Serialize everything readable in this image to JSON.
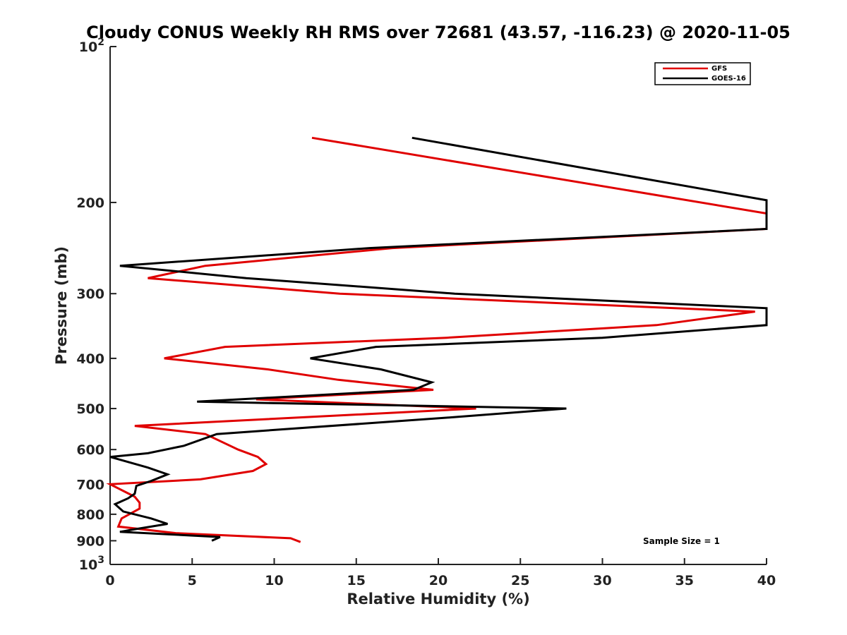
{
  "chart_data": {
    "type": "line",
    "title": "Cloudy CONUS Weekly RH RMS over 72681 (43.57, -116.23) @ 2020-11-05",
    "xlabel": "Relative Humidity (%)",
    "ylabel": "Pressure (mb)",
    "xlim": [
      0,
      40
    ],
    "ylim": [
      100,
      1000
    ],
    "y_scale": "log",
    "y_reversed": true,
    "grid": false,
    "legend_position": "top-right",
    "x_ticks": [
      "0",
      "5",
      "10",
      "15",
      "20",
      "25",
      "30",
      "35",
      "40"
    ],
    "y_ticks": [
      {
        "value": 100,
        "base": "10",
        "exp": "2"
      },
      {
        "value": 200,
        "label": "200"
      },
      {
        "value": 300,
        "label": "300"
      },
      {
        "value": 400,
        "label": "400"
      },
      {
        "value": 500,
        "label": "500"
      },
      {
        "value": 600,
        "label": "600"
      },
      {
        "value": 700,
        "label": "700"
      },
      {
        "value": 800,
        "label": "800"
      },
      {
        "value": 900,
        "label": "900"
      },
      {
        "value": 1000,
        "base": "10",
        "exp": "3"
      }
    ],
    "series": [
      {
        "name": "GFS",
        "color": "#e00000",
        "points": [
          {
            "x": 12.3,
            "y": 150
          },
          {
            "x": 40.0,
            "y": 210
          },
          {
            "x": 40.0,
            "y": 225
          },
          {
            "x": 17.2,
            "y": 245
          },
          {
            "x": 5.8,
            "y": 265
          },
          {
            "x": 2.3,
            "y": 280
          },
          {
            "x": 14.0,
            "y": 300
          },
          {
            "x": 39.3,
            "y": 325
          },
          {
            "x": 33.3,
            "y": 345
          },
          {
            "x": 20.5,
            "y": 365
          },
          {
            "x": 7.0,
            "y": 380
          },
          {
            "x": 3.3,
            "y": 400
          },
          {
            "x": 9.6,
            "y": 420
          },
          {
            "x": 13.9,
            "y": 440
          },
          {
            "x": 19.7,
            "y": 460
          },
          {
            "x": 8.9,
            "y": 480
          },
          {
            "x": 22.3,
            "y": 500
          },
          {
            "x": 1.5,
            "y": 540
          },
          {
            "x": 5.8,
            "y": 560
          },
          {
            "x": 7.8,
            "y": 600
          },
          {
            "x": 9.0,
            "y": 620
          },
          {
            "x": 9.5,
            "y": 640
          },
          {
            "x": 8.7,
            "y": 660
          },
          {
            "x": 5.5,
            "y": 685
          },
          {
            "x": 0.0,
            "y": 700
          },
          {
            "x": 1.5,
            "y": 740
          },
          {
            "x": 1.8,
            "y": 760
          },
          {
            "x": 1.8,
            "y": 780
          },
          {
            "x": 0.7,
            "y": 815
          },
          {
            "x": 0.5,
            "y": 845
          },
          {
            "x": 4.0,
            "y": 870
          },
          {
            "x": 11.0,
            "y": 890
          },
          {
            "x": 11.6,
            "y": 905
          }
        ]
      },
      {
        "name": "GOES-16",
        "color": "#000000",
        "points": [
          {
            "x": 18.4,
            "y": 150
          },
          {
            "x": 40.0,
            "y": 198
          },
          {
            "x": 40.0,
            "y": 225
          },
          {
            "x": 15.8,
            "y": 245
          },
          {
            "x": 0.6,
            "y": 265
          },
          {
            "x": 8.3,
            "y": 280
          },
          {
            "x": 21.0,
            "y": 300
          },
          {
            "x": 40.0,
            "y": 320
          },
          {
            "x": 40.0,
            "y": 345
          },
          {
            "x": 30.0,
            "y": 365
          },
          {
            "x": 16.2,
            "y": 380
          },
          {
            "x": 12.2,
            "y": 400
          },
          {
            "x": 16.5,
            "y": 420
          },
          {
            "x": 19.6,
            "y": 445
          },
          {
            "x": 18.5,
            "y": 460
          },
          {
            "x": 5.3,
            "y": 485
          },
          {
            "x": 27.8,
            "y": 500
          },
          {
            "x": 20.8,
            "y": 520
          },
          {
            "x": 6.5,
            "y": 560
          },
          {
            "x": 4.5,
            "y": 590
          },
          {
            "x": 2.3,
            "y": 610
          },
          {
            "x": 0.0,
            "y": 620
          },
          {
            "x": 2.3,
            "y": 650
          },
          {
            "x": 3.5,
            "y": 670
          },
          {
            "x": 2.5,
            "y": 690
          },
          {
            "x": 1.6,
            "y": 705
          },
          {
            "x": 1.5,
            "y": 730
          },
          {
            "x": 1.1,
            "y": 745
          },
          {
            "x": 0.3,
            "y": 765
          },
          {
            "x": 0.8,
            "y": 790
          },
          {
            "x": 2.5,
            "y": 815
          },
          {
            "x": 3.5,
            "y": 835
          },
          {
            "x": 1.5,
            "y": 855
          },
          {
            "x": 0.6,
            "y": 865
          },
          {
            "x": 6.7,
            "y": 885
          },
          {
            "x": 6.2,
            "y": 900
          }
        ]
      }
    ],
    "annotations": [
      {
        "text": "Sample Size = 1",
        "position": "bottom-right"
      }
    ]
  }
}
